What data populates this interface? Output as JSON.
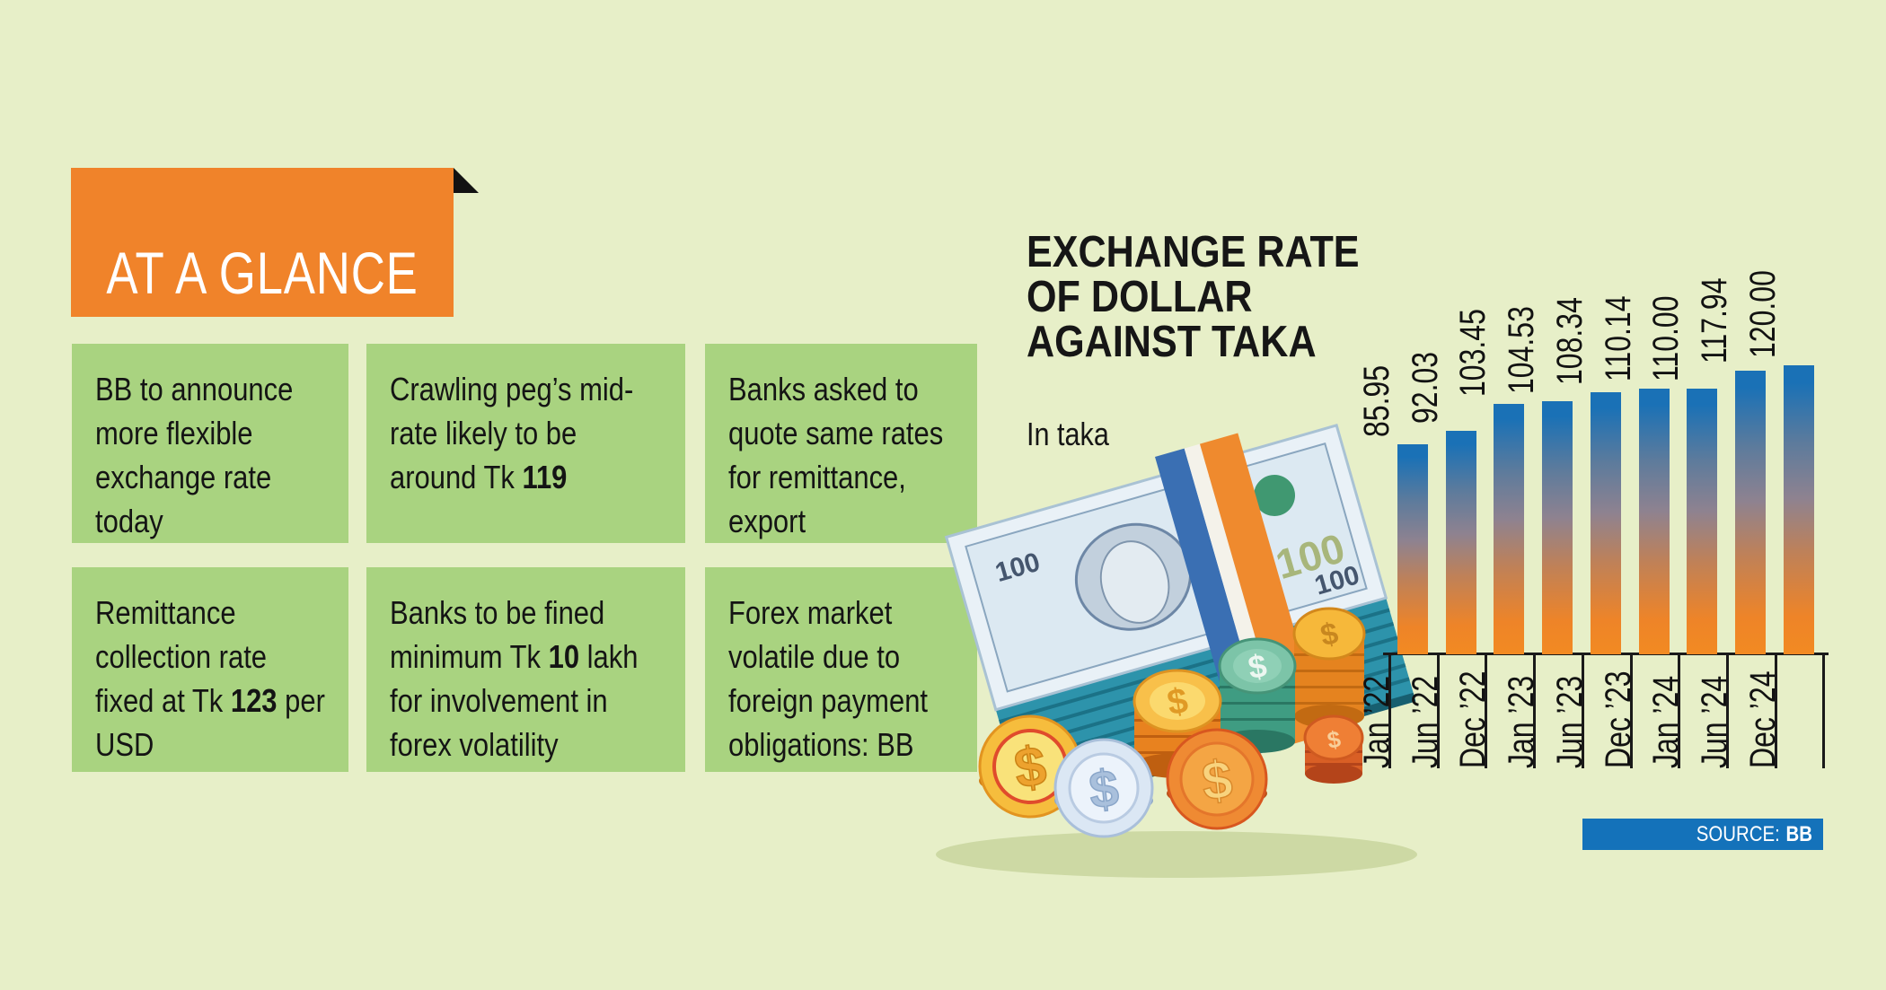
{
  "badge": {
    "title": "AT A GLANCE"
  },
  "glance_items": [
    {
      "text": "BB to announce more flexible exchange rate today"
    },
    {
      "text": "Crawling peg’s mid-rate likely to be around Tk **119**"
    },
    {
      "text": "Banks asked to quote same rates for remittance, export"
    },
    {
      "text": "Remittance collection rate fixed at Tk **123** per USD"
    },
    {
      "text": "Banks to be fined minimum Tk **10** lakh for involvement in forex volatility"
    },
    {
      "text": "Forex market volatile due to foreign payment obligations: BB"
    }
  ],
  "chart": {
    "title_lines": [
      "EXCHANGE RATE",
      "OF DOLLAR",
      "AGAINST TAKA"
    ],
    "subtitle": "In taka",
    "source_label": "SOURCE:",
    "source_value": "BB"
  },
  "chart_data": {
    "type": "bar",
    "title": "EXCHANGE RATE OF DOLLAR AGAINST TAKA",
    "subtitle": "In taka",
    "categories": [
      "Jan ’22",
      "Jun ’22",
      "Dec ’22",
      "Jan ’23",
      "Jun ’23",
      "Dec ’23",
      "Jan ’24",
      "Jun ’24",
      "Dec ’24"
    ],
    "values": [
      85.95,
      92.03,
      103.45,
      104.53,
      108.34,
      110.14,
      110.0,
      117.94,
      120.0
    ],
    "value_label_decimals": 2,
    "ylim": [
      0,
      120
    ],
    "grid": false,
    "legend": false,
    "bar_gradient": [
      "#1a71b6",
      "#8e8290",
      "#f28a22"
    ],
    "source": "BB"
  },
  "colors": {
    "bg": "#e7efc8",
    "panel_green": "#a9d380",
    "accent_orange": "#f0832a",
    "source_blue": "#1472ba",
    "bar_top_blue": "#1a71b6",
    "bar_bottom_orange": "#f28a22",
    "ink": "#161616"
  }
}
